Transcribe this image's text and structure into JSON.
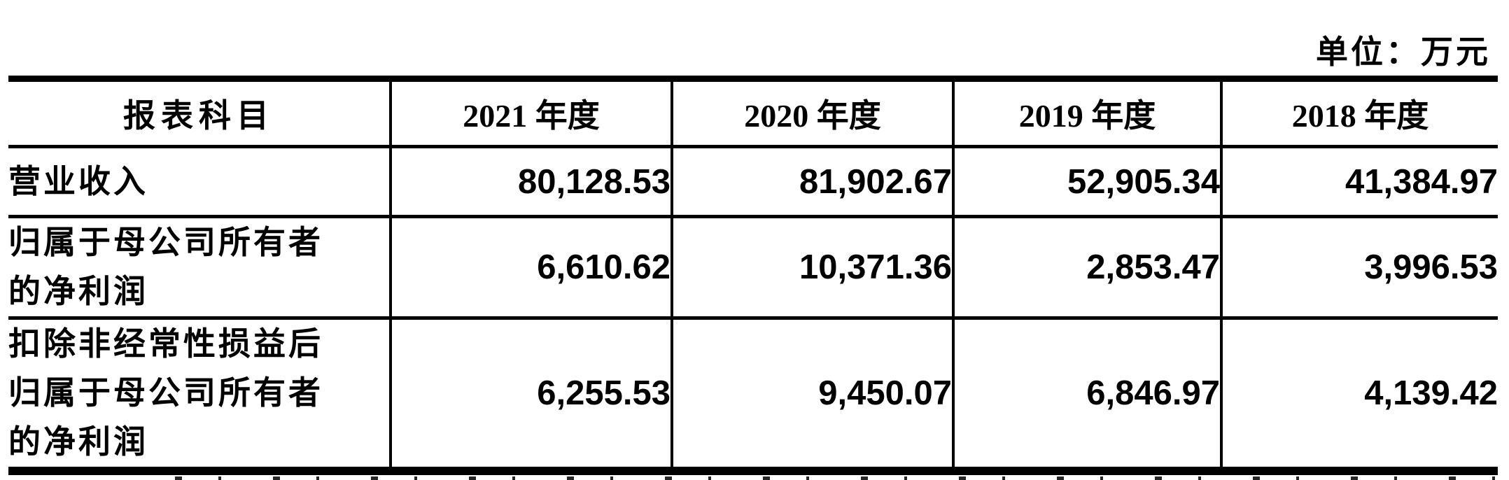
{
  "document": {
    "unit_label": "单位：万元"
  },
  "table": {
    "columns": [
      "报表科目",
      "2021 年度",
      "2020 年度",
      "2019 年度",
      "2018 年度"
    ],
    "rows": [
      {
        "label": "营业收入",
        "values": [
          "80,128.53",
          "81,902.67",
          "52,905.34",
          "41,384.97"
        ]
      },
      {
        "label": "归属于母公司所有者的净利润",
        "values": [
          "6,610.62",
          "10,371.36",
          "2,853.47",
          "3,996.53"
        ]
      },
      {
        "label": "扣除非经常性损益后归属于母公司所有者的净利润",
        "values": [
          "6,255.53",
          "9,450.07",
          "6,846.97",
          "4,139.42"
        ]
      }
    ]
  },
  "colors": {
    "text": "#000000",
    "background": "#ffffff",
    "border": "#000000"
  }
}
